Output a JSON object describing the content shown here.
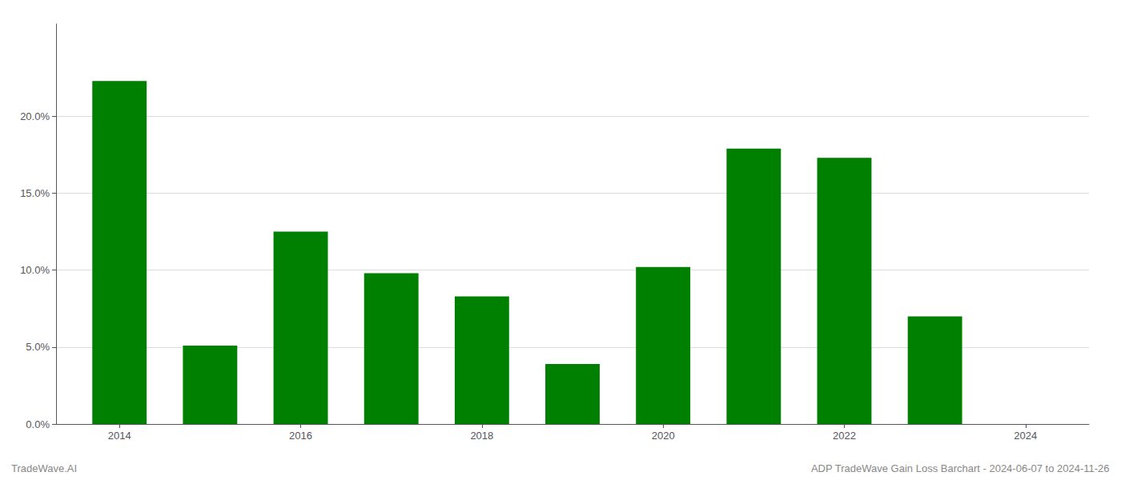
{
  "chart_data": {
    "type": "bar",
    "x": [
      2014,
      2015,
      2016,
      2017,
      2018,
      2019,
      2020,
      2021,
      2022,
      2023
    ],
    "values": [
      0.223,
      0.051,
      0.125,
      0.098,
      0.083,
      0.039,
      0.102,
      0.179,
      0.173,
      0.07
    ],
    "color": "#008000",
    "xlim": [
      2013.3,
      2024.7
    ],
    "xticks": [
      2014,
      2016,
      2018,
      2020,
      2022,
      2024
    ],
    "ylim": [
      0,
      0.26
    ],
    "yticks": [
      {
        "value": 0.0,
        "label": "0.0%"
      },
      {
        "value": 0.05,
        "label": "5.0%"
      },
      {
        "value": 0.1,
        "label": "10.0%"
      },
      {
        "value": 0.15,
        "label": "15.0%"
      },
      {
        "value": 0.2,
        "label": "20.0%"
      }
    ],
    "grid": true,
    "annotations": [
      "TradeWave.AI",
      "ADP TradeWave Gain Loss Barchart - 2024-06-07 to 2024-11-26"
    ]
  }
}
